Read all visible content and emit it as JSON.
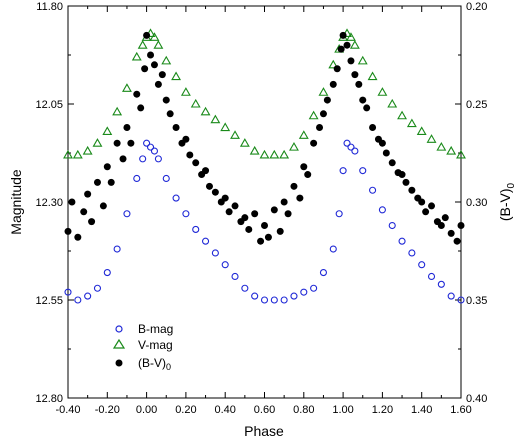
{
  "chart_data": {
    "type": "scatter",
    "xlabel": "Phase",
    "ylabel": "Magnitude",
    "y2label": "(B-V)",
    "y2label_sub": "0",
    "xlim": [
      -0.4,
      1.6
    ],
    "ylim": [
      11.8,
      12.8
    ],
    "y_inverted": true,
    "y2lim": [
      0.2,
      0.4
    ],
    "y2_inverted": true,
    "x_ticks": [
      "-0.40",
      "-0.20",
      "0.00",
      "0.20",
      "0.40",
      "0.60",
      "0.80",
      "1.00",
      "1.20",
      "1.40",
      "1.60"
    ],
    "y_ticks": [
      "11.80",
      "12.05",
      "12.30",
      "12.55",
      "12.80"
    ],
    "y2_ticks": [
      "0.20",
      "0.25",
      "0.30",
      "0.35",
      "0.40"
    ],
    "grid": false,
    "legend_position": "bottom-left",
    "series": [
      {
        "name": "B-mag",
        "axis": "left",
        "marker": "open-circle",
        "color": "#1f28d6",
        "x": [
          -0.4,
          -0.35,
          -0.3,
          -0.25,
          -0.2,
          -0.15,
          -0.1,
          -0.05,
          -0.02,
          0.0,
          0.02,
          0.04,
          0.06,
          0.1,
          0.15,
          0.2,
          0.25,
          0.3,
          0.35,
          0.4,
          0.45,
          0.5,
          0.55,
          0.6,
          0.65,
          0.7,
          0.75,
          0.8,
          0.85,
          0.9,
          0.95,
          0.98,
          1.0,
          1.02,
          1.04,
          1.06,
          1.1,
          1.15,
          1.2,
          1.25,
          1.3,
          1.35,
          1.4,
          1.45,
          1.5,
          1.55,
          1.6
        ],
        "y": [
          12.53,
          12.55,
          12.54,
          12.52,
          12.48,
          12.42,
          12.33,
          12.24,
          12.19,
          12.15,
          12.16,
          12.17,
          12.19,
          12.24,
          12.29,
          12.33,
          12.37,
          12.4,
          12.43,
          12.46,
          12.49,
          12.52,
          12.54,
          12.55,
          12.55,
          12.55,
          12.54,
          12.53,
          12.52,
          12.48,
          12.42,
          12.33,
          12.22,
          12.15,
          12.16,
          12.17,
          12.22,
          12.27,
          12.32,
          12.36,
          12.4,
          12.43,
          12.46,
          12.49,
          12.51,
          12.54,
          12.55
        ]
      },
      {
        "name": "V-mag",
        "axis": "left",
        "marker": "open-triangle",
        "color": "#1a8a1a",
        "x": [
          -0.4,
          -0.35,
          -0.3,
          -0.25,
          -0.2,
          -0.15,
          -0.1,
          -0.05,
          -0.02,
          0.0,
          0.02,
          0.04,
          0.06,
          0.1,
          0.15,
          0.2,
          0.25,
          0.3,
          0.35,
          0.4,
          0.45,
          0.5,
          0.55,
          0.6,
          0.65,
          0.7,
          0.75,
          0.8,
          0.85,
          0.9,
          0.95,
          0.98,
          1.0,
          1.02,
          1.04,
          1.06,
          1.1,
          1.15,
          1.2,
          1.25,
          1.3,
          1.35,
          1.4,
          1.45,
          1.5,
          1.55,
          1.6
        ],
        "y": [
          12.18,
          12.18,
          12.17,
          12.15,
          12.12,
          12.07,
          12.01,
          11.93,
          11.9,
          11.88,
          11.87,
          11.88,
          11.9,
          11.94,
          11.98,
          12.02,
          12.05,
          12.07,
          12.09,
          12.11,
          12.13,
          12.15,
          12.17,
          12.18,
          12.18,
          12.18,
          12.16,
          12.13,
          12.08,
          12.02,
          11.95,
          11.91,
          11.88,
          11.87,
          11.88,
          11.9,
          11.94,
          11.98,
          12.02,
          12.05,
          12.08,
          12.1,
          12.12,
          12.14,
          12.16,
          12.17,
          12.18
        ]
      },
      {
        "name": "(B-V)",
        "name_sub": "0",
        "axis": "right",
        "marker": "filled-circle",
        "color": "#000000",
        "x": [
          -0.4,
          -0.38,
          -0.35,
          -0.32,
          -0.3,
          -0.28,
          -0.25,
          -0.22,
          -0.2,
          -0.18,
          -0.15,
          -0.12,
          -0.1,
          -0.08,
          -0.05,
          -0.03,
          -0.01,
          0.0,
          0.02,
          0.04,
          0.06,
          0.08,
          0.1,
          0.12,
          0.15,
          0.18,
          0.2,
          0.22,
          0.25,
          0.28,
          0.3,
          0.32,
          0.35,
          0.38,
          0.4,
          0.42,
          0.45,
          0.48,
          0.5,
          0.52,
          0.55,
          0.58,
          0.6,
          0.62,
          0.65,
          0.68,
          0.7,
          0.72,
          0.75,
          0.78,
          0.8,
          0.82,
          0.85,
          0.88,
          0.9,
          0.92,
          0.95,
          0.97,
          0.99,
          1.0,
          1.02,
          1.04,
          1.06,
          1.08,
          1.1,
          1.12,
          1.15,
          1.18,
          1.2,
          1.22,
          1.25,
          1.28,
          1.3,
          1.32,
          1.35,
          1.38,
          1.4,
          1.42,
          1.45,
          1.48,
          1.5,
          1.52,
          1.55,
          1.58,
          1.6
        ],
        "y": [
          0.315,
          0.3,
          0.318,
          0.305,
          0.296,
          0.31,
          0.29,
          0.302,
          0.282,
          0.29,
          0.27,
          0.278,
          0.262,
          0.27,
          0.245,
          0.252,
          0.232,
          0.215,
          0.225,
          0.23,
          0.24,
          0.235,
          0.248,
          0.255,
          0.262,
          0.27,
          0.268,
          0.276,
          0.28,
          0.286,
          0.284,
          0.292,
          0.295,
          0.3,
          0.298,
          0.305,
          0.302,
          0.31,
          0.308,
          0.314,
          0.306,
          0.32,
          0.312,
          0.318,
          0.304,
          0.315,
          0.3,
          0.306,
          0.292,
          0.298,
          0.282,
          0.286,
          0.27,
          0.262,
          0.255,
          0.248,
          0.24,
          0.232,
          0.222,
          0.215,
          0.22,
          0.228,
          0.235,
          0.24,
          0.248,
          0.252,
          0.262,
          0.268,
          0.27,
          0.275,
          0.28,
          0.285,
          0.286,
          0.29,
          0.294,
          0.298,
          0.3,
          0.305,
          0.302,
          0.31,
          0.312,
          0.308,
          0.316,
          0.32,
          0.312
        ]
      }
    ]
  }
}
